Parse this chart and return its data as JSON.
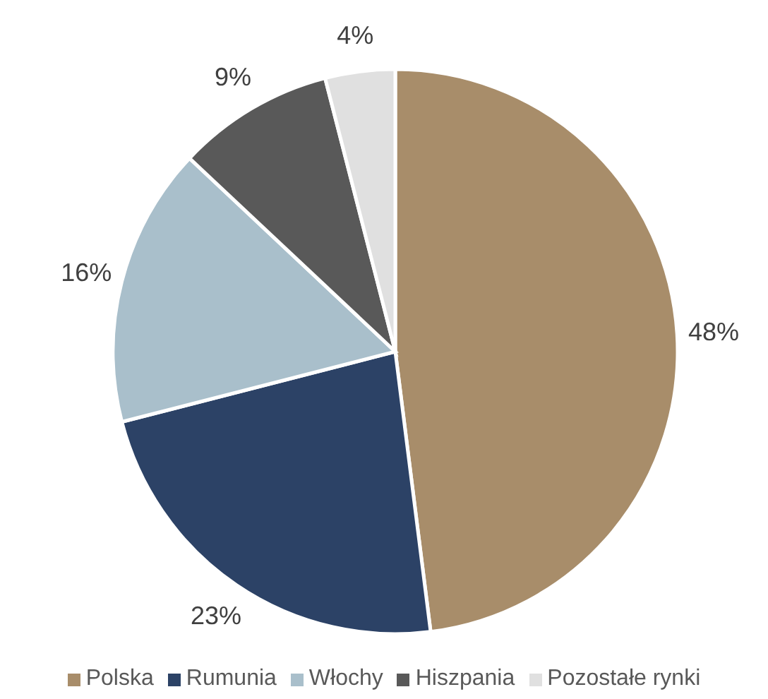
{
  "chart_data": {
    "type": "pie",
    "categories": [
      "Polska",
      "Rumunia",
      "Włochy",
      "Hiszpania",
      "Pozostałe rynki"
    ],
    "values": [
      48,
      23,
      16,
      9,
      4
    ],
    "colors": [
      "#a88d6a",
      "#2c4266",
      "#a9bfcb",
      "#595959",
      "#e0e0e0"
    ],
    "value_labels": [
      "48%",
      "23%",
      "16%",
      "9%",
      "4%"
    ],
    "legend": "bottom"
  }
}
